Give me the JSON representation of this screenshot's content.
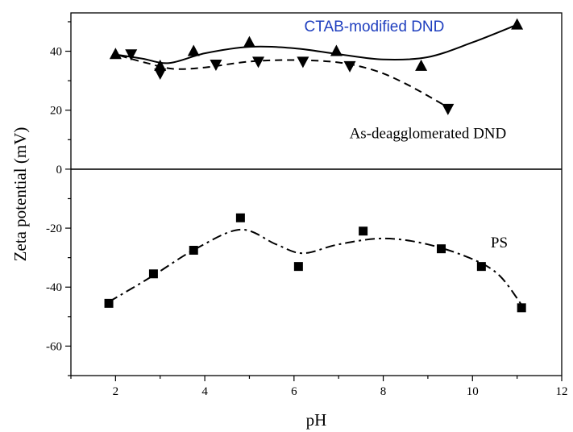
{
  "chart_data": {
    "type": "scatter",
    "xlabel": "pH",
    "ylabel": "Zeta potential (mV)",
    "xlim": [
      1,
      12
    ],
    "ylim": [
      -70,
      53
    ],
    "x_ticks": [
      2,
      4,
      6,
      8,
      10,
      12
    ],
    "y_ticks": [
      -60,
      -40,
      -20,
      0,
      20,
      40
    ],
    "zero_line": true,
    "grid": false,
    "legend": "none",
    "series": [
      {
        "name": "CTAB-modified DND",
        "marker": "triangle-up",
        "line_style": "solid",
        "x": [
          2.0,
          3.0,
          3.75,
          5.0,
          6.95,
          8.85,
          11.0
        ],
        "y": [
          39,
          35,
          40,
          43,
          40,
          35,
          49
        ],
        "curve": [
          [
            1.95,
            39
          ],
          [
            2.6,
            37.5
          ],
          [
            3.2,
            36
          ],
          [
            4.0,
            39.3
          ],
          [
            5.0,
            41.5
          ],
          [
            6.0,
            41
          ],
          [
            7.0,
            39
          ],
          [
            8.0,
            37.2
          ],
          [
            9.0,
            38
          ],
          [
            10.0,
            43
          ],
          [
            11.0,
            49
          ]
        ]
      },
      {
        "name": "As-deagglomerated DND",
        "marker": "triangle-down",
        "line_style": "dashed",
        "x": [
          2.35,
          3.0,
          4.25,
          5.2,
          6.2,
          7.25,
          9.45
        ],
        "y": [
          39,
          32.5,
          35.5,
          36.5,
          36.5,
          35,
          20.5
        ],
        "curve": [
          [
            2.1,
            38.5
          ],
          [
            2.7,
            36
          ],
          [
            3.3,
            34
          ],
          [
            4.0,
            34.5
          ],
          [
            5.0,
            36.5
          ],
          [
            6.0,
            37
          ],
          [
            7.0,
            36.2
          ],
          [
            7.8,
            33.5
          ],
          [
            8.5,
            29
          ],
          [
            9.45,
            21
          ]
        ]
      },
      {
        "name": "PS",
        "marker": "square",
        "line_style": "dash-dot",
        "x": [
          1.85,
          2.85,
          3.75,
          4.8,
          6.1,
          7.55,
          9.3,
          10.2,
          11.1
        ],
        "y": [
          -45.5,
          -35.5,
          -27.5,
          -16.5,
          -33,
          -21,
          -27,
          -33,
          -47
        ],
        "curve": [
          [
            1.85,
            -45
          ],
          [
            2.8,
            -36.5
          ],
          [
            3.8,
            -27
          ],
          [
            4.8,
            -20.5
          ],
          [
            5.6,
            -25.5
          ],
          [
            6.2,
            -28.5
          ],
          [
            7.0,
            -25.5
          ],
          [
            8.0,
            -23.5
          ],
          [
            9.0,
            -25.5
          ],
          [
            10.0,
            -30.5
          ],
          [
            10.6,
            -36
          ],
          [
            11.1,
            -46
          ]
        ]
      }
    ],
    "annotations": [
      {
        "text": "CTAB-modified DND",
        "x": 7.8,
        "y": 46.7,
        "color": "#1f3fbf"
      },
      {
        "text": "As-deagglomerated DND",
        "x": 9.0,
        "y": 10.5,
        "color": "#000000"
      },
      {
        "text": "PS",
        "x": 10.6,
        "y": -26.5,
        "color": "#000000"
      }
    ]
  }
}
